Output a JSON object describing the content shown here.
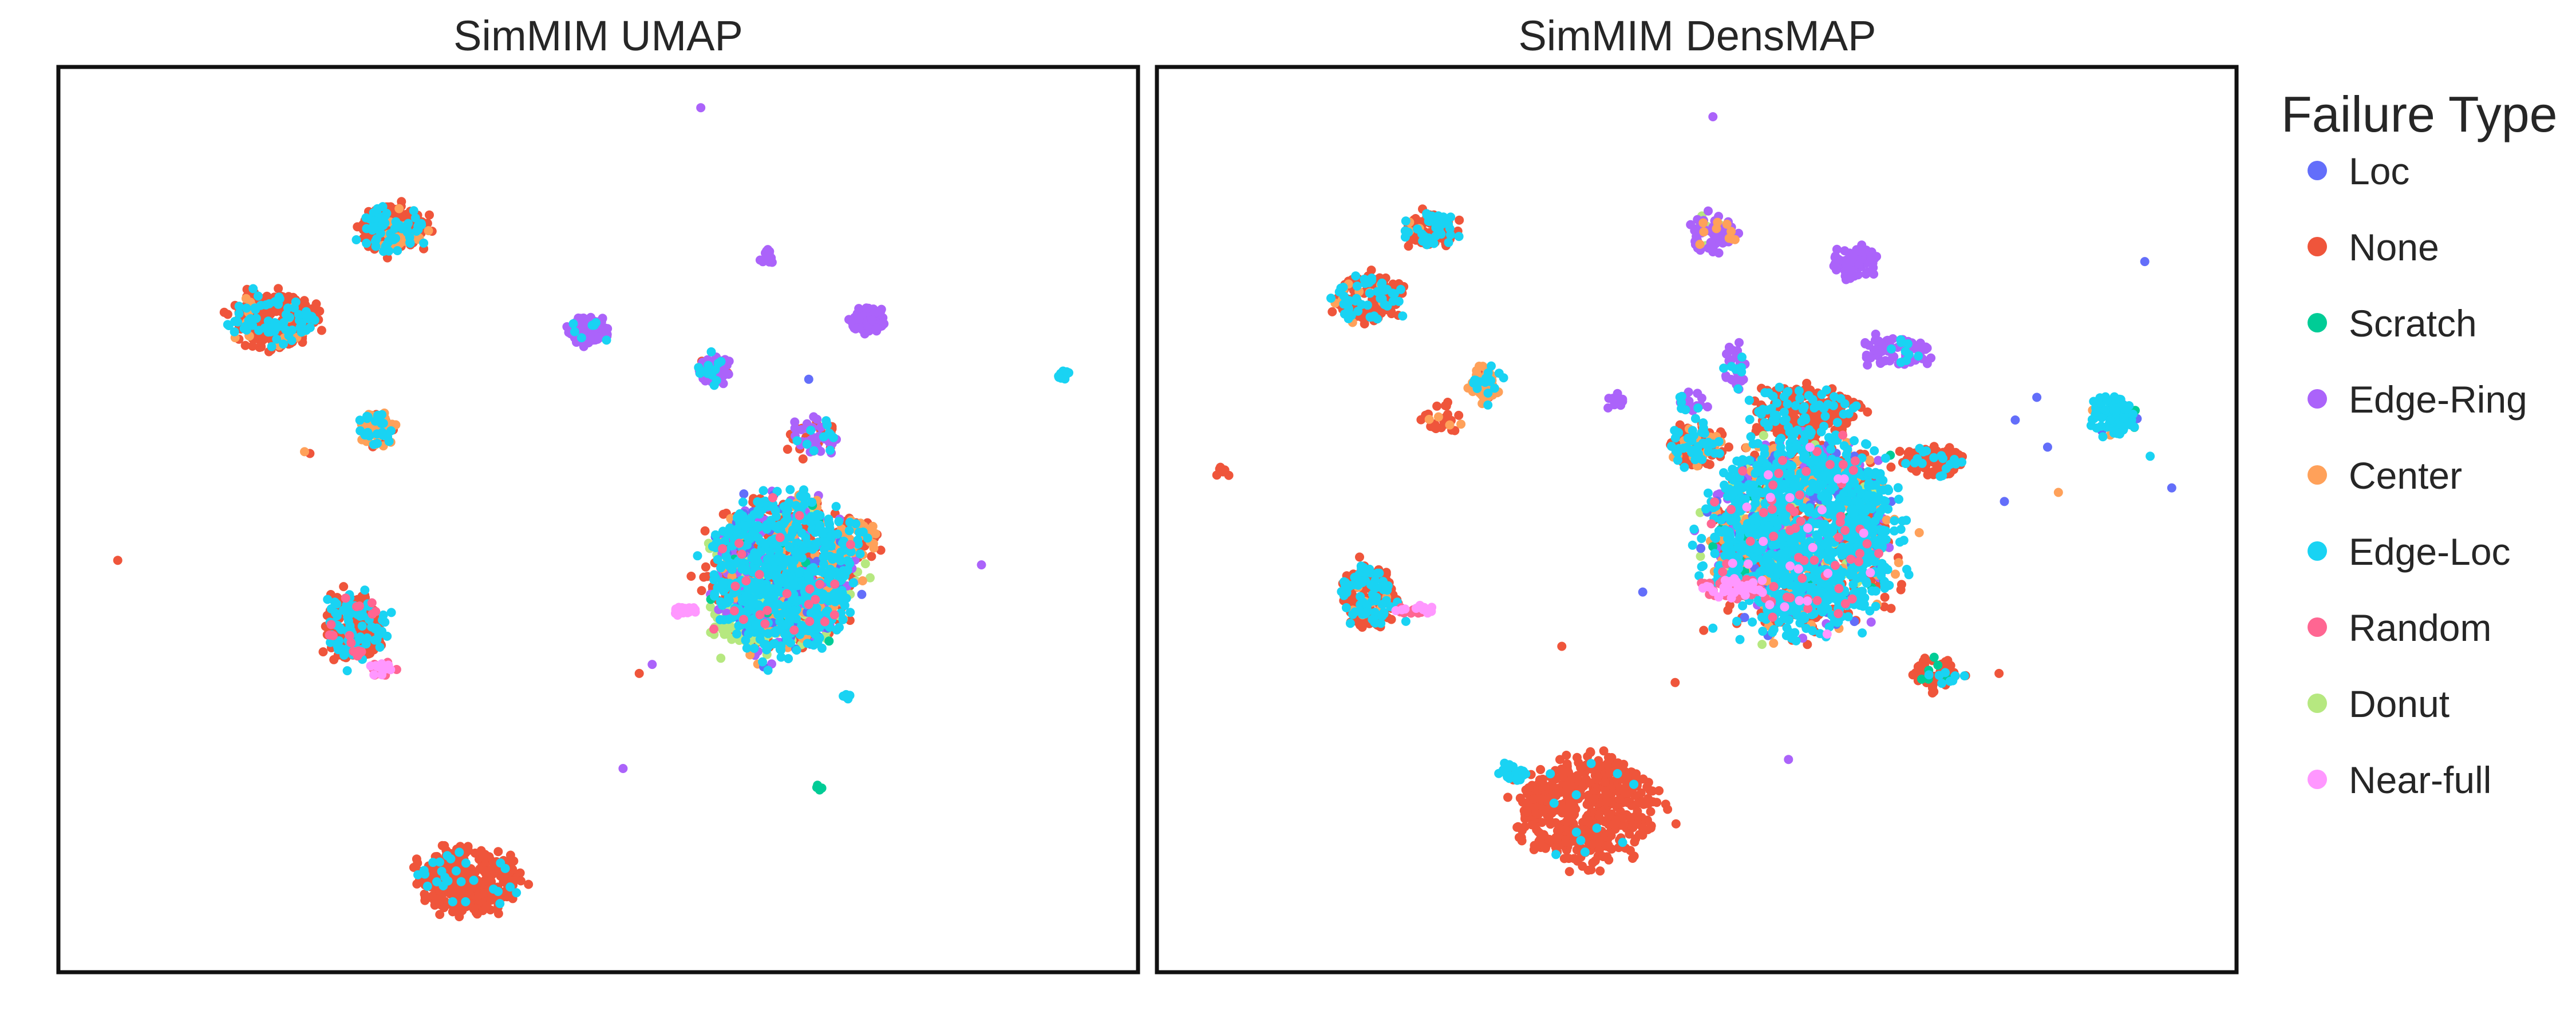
{
  "chart_data": [
    {
      "type": "scatter",
      "title": "SimMIM UMAP",
      "xlabel": "",
      "ylabel": "",
      "grid": false,
      "xlim": [
        0,
        100
      ],
      "ylim": [
        0,
        100
      ],
      "clusters": [
        {
          "label": "None",
          "cx": 31,
          "cy": 82,
          "rx": 3.4,
          "ry": 2.8,
          "n": 260,
          "mix": {
            "None": 0.75,
            "Edge-Loc": 0.2,
            "Center": 0.05
          }
        },
        {
          "label": "None",
          "cx": 20,
          "cy": 72,
          "rx": 4.4,
          "ry": 3.5,
          "n": 300,
          "mix": {
            "None": 0.75,
            "Edge-Loc": 0.2,
            "Center": 0.05
          }
        },
        {
          "label": "None",
          "cx": 27.5,
          "cy": 38,
          "rx": 3.1,
          "ry": 4.2,
          "n": 280,
          "mix": {
            "None": 0.6,
            "Edge-Loc": 0.35,
            "Random": 0.05
          }
        },
        {
          "label": "None",
          "cx": 38,
          "cy": 10,
          "rx": 5.4,
          "ry": 4.1,
          "n": 320,
          "mix": {
            "None": 0.9,
            "Edge-Loc": 0.1
          }
        },
        {
          "label": "Center",
          "cx": 29.5,
          "cy": 60,
          "rx": 1.9,
          "ry": 2.1,
          "n": 80,
          "mix": {
            "Center": 0.55,
            "Edge-Loc": 0.3,
            "None": 0.15
          }
        },
        {
          "label": "Edge-Ring",
          "cx": 49,
          "cy": 71,
          "rx": 2.3,
          "ry": 1.6,
          "n": 90,
          "mix": {
            "Edge-Ring": 0.9,
            "Edge-Loc": 0.1
          }
        },
        {
          "label": "Edge-Ring",
          "cx": 75,
          "cy": 72,
          "rx": 1.9,
          "ry": 1.6,
          "n": 80,
          "mix": {
            "Edge-Ring": 1.0
          }
        },
        {
          "label": "Edge-Ring",
          "cx": 60.5,
          "cy": 66.5,
          "rx": 1.6,
          "ry": 1.8,
          "n": 70,
          "mix": {
            "Edge-Ring": 0.75,
            "Edge-Loc": 0.2,
            "None": 0.05
          }
        },
        {
          "label": "Edge-Ring",
          "cx": 65.5,
          "cy": 79,
          "rx": 0.8,
          "ry": 0.9,
          "n": 14,
          "mix": {
            "Edge-Ring": 1.0
          }
        },
        {
          "label": "Edge-Loc",
          "cx": 93,
          "cy": 66,
          "rx": 0.7,
          "ry": 0.6,
          "n": 14,
          "mix": {
            "Edge-Loc": 1.0
          }
        },
        {
          "label": "Edge-Loc",
          "cx": 67,
          "cy": 44,
          "rx": 7.5,
          "ry": 9.5,
          "n": 1300,
          "mix": {
            "Edge-Loc": 0.45,
            "None": 0.22,
            "Edge-Ring": 0.09,
            "Center": 0.09,
            "Donut": 0.07,
            "Loc": 0.05,
            "Random": 0.02,
            "Scratch": 0.01
          }
        },
        {
          "label": "Donut",
          "cx": 64,
          "cy": 39,
          "rx": 4.0,
          "ry": 3.0,
          "n": 170,
          "mix": {
            "Donut": 1.0
          }
        },
        {
          "label": "Near-full",
          "cx": 58,
          "cy": 40,
          "rx": 1.3,
          "ry": 0.6,
          "n": 30,
          "mix": {
            "Near-full": 1.0
          }
        },
        {
          "label": "Random",
          "cx": 30,
          "cy": 33.5,
          "rx": 1.3,
          "ry": 0.9,
          "n": 30,
          "mix": {
            "Random": 0.55,
            "Near-full": 0.45
          }
        },
        {
          "label": "Center",
          "cx": 74,
          "cy": 48,
          "rx": 2.2,
          "ry": 2.5,
          "n": 70,
          "mix": {
            "Center": 0.45,
            "None": 0.45,
            "Edge-Loc": 0.1
          }
        },
        {
          "label": "Edge-Ring",
          "cx": 70,
          "cy": 59,
          "rx": 2.5,
          "ry": 2.5,
          "n": 60,
          "mix": {
            "Edge-Ring": 0.5,
            "None": 0.3,
            "Edge-Loc": 0.2
          }
        },
        {
          "label": "Scratch",
          "cx": 70.5,
          "cy": 20.5,
          "rx": 0.3,
          "ry": 0.4,
          "n": 6,
          "mix": {
            "Scratch": 1.0
          }
        },
        {
          "label": "Edge-Loc",
          "cx": 73,
          "cy": 30.5,
          "rx": 0.4,
          "ry": 0.5,
          "n": 6,
          "mix": {
            "Edge-Loc": 0.6,
            "Loc": 0.4
          }
        }
      ],
      "points": [
        {
          "x": 59.5,
          "y": 95.5,
          "label": "Edge-Ring"
        },
        {
          "x": 5.5,
          "y": 45.5,
          "label": "None"
        },
        {
          "x": 22.8,
          "y": 57.5,
          "label": "Center"
        },
        {
          "x": 23.3,
          "y": 57.3,
          "label": "None"
        },
        {
          "x": 69.5,
          "y": 65.5,
          "label": "Loc"
        },
        {
          "x": 85.5,
          "y": 45.0,
          "label": "Edge-Ring"
        },
        {
          "x": 52.3,
          "y": 22.5,
          "label": "Edge-Ring"
        },
        {
          "x": 55.0,
          "y": 34.0,
          "label": "Edge-Ring"
        },
        {
          "x": 53.8,
          "y": 33.0,
          "label": "None"
        }
      ]
    },
    {
      "type": "scatter",
      "title": "SimMIM DensMAP",
      "xlabel": "",
      "ylabel": "",
      "grid": false,
      "xlim": [
        0,
        100
      ],
      "ylim": [
        0,
        100
      ],
      "clusters": [
        {
          "label": "None",
          "cx": 25.5,
          "cy": 82,
          "rx": 2.8,
          "ry": 2.1,
          "n": 130,
          "mix": {
            "None": 0.65,
            "Edge-Loc": 0.3,
            "Center": 0.05
          }
        },
        {
          "label": "None",
          "cx": 19.5,
          "cy": 74.5,
          "rx": 3.7,
          "ry": 2.9,
          "n": 170,
          "mix": {
            "None": 0.75,
            "Edge-Loc": 0.2,
            "Center": 0.05
          }
        },
        {
          "label": "Center",
          "cx": 30.5,
          "cy": 65,
          "rx": 1.7,
          "ry": 2.3,
          "n": 60,
          "mix": {
            "Center": 0.6,
            "Edge-Loc": 0.3,
            "None": 0.1
          }
        },
        {
          "label": "None",
          "cx": 26.5,
          "cy": 61.5,
          "rx": 2.4,
          "ry": 2.2,
          "n": 25,
          "mix": {
            "None": 0.9,
            "Center": 0.1
          }
        },
        {
          "label": "None",
          "cx": 6.0,
          "cy": 55.0,
          "rx": 0.8,
          "ry": 0.8,
          "n": 8,
          "mix": {
            "None": 1.0
          }
        },
        {
          "label": "Edge-Ring",
          "cx": 51.5,
          "cy": 81.5,
          "rx": 2.4,
          "ry": 2.5,
          "n": 80,
          "mix": {
            "Edge-Ring": 0.85,
            "Center": 0.1,
            "Donut": 0.05
          }
        },
        {
          "label": "Edge-Ring",
          "cx": 64.5,
          "cy": 78.5,
          "rx": 2.4,
          "ry": 2.1,
          "n": 70,
          "mix": {
            "Edge-Ring": 1.0
          }
        },
        {
          "label": "Edge-Ring",
          "cx": 68,
          "cy": 68.5,
          "rx": 3.5,
          "ry": 1.9,
          "n": 70,
          "mix": {
            "Edge-Ring": 0.9,
            "Edge-Loc": 0.1
          }
        },
        {
          "label": "Edge-Ring",
          "cx": 53.5,
          "cy": 67,
          "rx": 1.3,
          "ry": 3.0,
          "n": 40,
          "mix": {
            "Edge-Ring": 0.7,
            "Edge-Loc": 0.3
          }
        },
        {
          "label": "Edge-Ring",
          "cx": 49.5,
          "cy": 63,
          "rx": 1.5,
          "ry": 1.2,
          "n": 20,
          "mix": {
            "Edge-Ring": 0.7,
            "Edge-Loc": 0.3
          }
        },
        {
          "label": "Edge-Ring",
          "cx": 42.5,
          "cy": 63,
          "rx": 0.9,
          "ry": 1.0,
          "n": 12,
          "mix": {
            "Edge-Ring": 1.0
          }
        },
        {
          "label": "Edge-Loc",
          "cx": 88.5,
          "cy": 61.5,
          "rx": 2.3,
          "ry": 2.7,
          "n": 110,
          "mix": {
            "Edge-Loc": 0.85,
            "Scratch": 0.05,
            "Center": 0.05,
            "Loc": 0.05
          }
        },
        {
          "label": "Edge-Loc",
          "cx": 60,
          "cy": 48.5,
          "rx": 9.5,
          "ry": 12,
          "n": 2000,
          "mix": {
            "Edge-Loc": 0.48,
            "None": 0.22,
            "Edge-Ring": 0.07,
            "Center": 0.08,
            "Donut": 0.05,
            "Loc": 0.04,
            "Random": 0.03,
            "Scratch": 0.02,
            "Near-full": 0.01
          }
        },
        {
          "label": "None",
          "cx": 60,
          "cy": 62,
          "rx": 5.5,
          "ry": 3.0,
          "n": 230,
          "mix": {
            "None": 0.75,
            "Edge-Loc": 0.25
          }
        },
        {
          "label": "None",
          "cx": 72,
          "cy": 56.5,
          "rx": 3.0,
          "ry": 2.0,
          "n": 110,
          "mix": {
            "None": 0.85,
            "Edge-Loc": 0.15
          }
        },
        {
          "label": "None",
          "cx": 50,
          "cy": 58,
          "rx": 3.0,
          "ry": 3.0,
          "n": 120,
          "mix": {
            "None": 0.6,
            "Edge-Loc": 0.25,
            "Center": 0.15
          }
        },
        {
          "label": "Donut",
          "cx": 57.5,
          "cy": 47.5,
          "rx": 3.5,
          "ry": 2.2,
          "n": 150,
          "mix": {
            "Donut": 1.0
          }
        },
        {
          "label": "Random",
          "cx": 53.5,
          "cy": 42.5,
          "rx": 3.5,
          "ry": 1.2,
          "n": 80,
          "mix": {
            "Random": 0.55,
            "Near-full": 0.45
          }
        },
        {
          "label": "None",
          "cx": 72.5,
          "cy": 33,
          "rx": 2.5,
          "ry": 2.0,
          "n": 60,
          "mix": {
            "None": 0.8,
            "Scratch": 0.1,
            "Edge-Loc": 0.1
          }
        },
        {
          "label": "None",
          "cx": 19.5,
          "cy": 41.5,
          "rx": 3.0,
          "ry": 3.8,
          "n": 200,
          "mix": {
            "None": 0.6,
            "Edge-Loc": 0.35,
            "Center": 0.05
          }
        },
        {
          "label": "Random",
          "cx": 24,
          "cy": 40,
          "rx": 2.0,
          "ry": 0.6,
          "n": 24,
          "mix": {
            "Random": 0.6,
            "Near-full": 0.4
          }
        },
        {
          "label": "None",
          "cx": 40,
          "cy": 18,
          "rx": 7.0,
          "ry": 6.5,
          "n": 560,
          "mix": {
            "None": 0.97,
            "Edge-Loc": 0.03
          }
        },
        {
          "label": "Edge-Loc",
          "cx": 33,
          "cy": 22,
          "rx": 1.5,
          "ry": 1.3,
          "n": 30,
          "mix": {
            "Edge-Loc": 0.7,
            "None": 0.3
          }
        }
      ],
      "points": [
        {
          "x": 51.5,
          "y": 94.5,
          "label": "Edge-Ring"
        },
        {
          "x": 91.5,
          "y": 78.5,
          "label": "Loc"
        },
        {
          "x": 79.5,
          "y": 61.0,
          "label": "Loc"
        },
        {
          "x": 81.5,
          "y": 63.5,
          "label": "Loc"
        },
        {
          "x": 82.5,
          "y": 58.0,
          "label": "Loc"
        },
        {
          "x": 94.0,
          "y": 53.5,
          "label": "Loc"
        },
        {
          "x": 83.5,
          "y": 53.0,
          "label": "Center"
        },
        {
          "x": 92.0,
          "y": 57.0,
          "label": "Edge-Loc"
        },
        {
          "x": 78.5,
          "y": 52.0,
          "label": "Loc"
        },
        {
          "x": 37.5,
          "y": 36.0,
          "label": "None"
        },
        {
          "x": 48.0,
          "y": 32.0,
          "label": "None"
        },
        {
          "x": 78.0,
          "y": 33.0,
          "label": "None"
        },
        {
          "x": 58.5,
          "y": 23.5,
          "label": "Edge-Ring"
        },
        {
          "x": 51.5,
          "y": 38.0,
          "label": "Edge-Loc"
        },
        {
          "x": 45.0,
          "y": 42.0,
          "label": "Loc"
        },
        {
          "x": 62.0,
          "y": 38.5,
          "label": "Edge-Ring"
        }
      ]
    }
  ],
  "legend": {
    "title": "Failure Type",
    "placement": "right, outside plots",
    "entries": [
      {
        "label": "Loc",
        "color": "#636EFA"
      },
      {
        "label": "None",
        "color": "#EF553B"
      },
      {
        "label": "Scratch",
        "color": "#00CC96"
      },
      {
        "label": "Edge-Ring",
        "color": "#AB63FA"
      },
      {
        "label": "Center",
        "color": "#FFA15A"
      },
      {
        "label": "Edge-Loc",
        "color": "#19D3F3"
      },
      {
        "label": "Random",
        "color": "#FF6692"
      },
      {
        "label": "Donut",
        "color": "#B6E880"
      },
      {
        "label": "Near-full",
        "color": "#FF97FF"
      }
    ]
  }
}
